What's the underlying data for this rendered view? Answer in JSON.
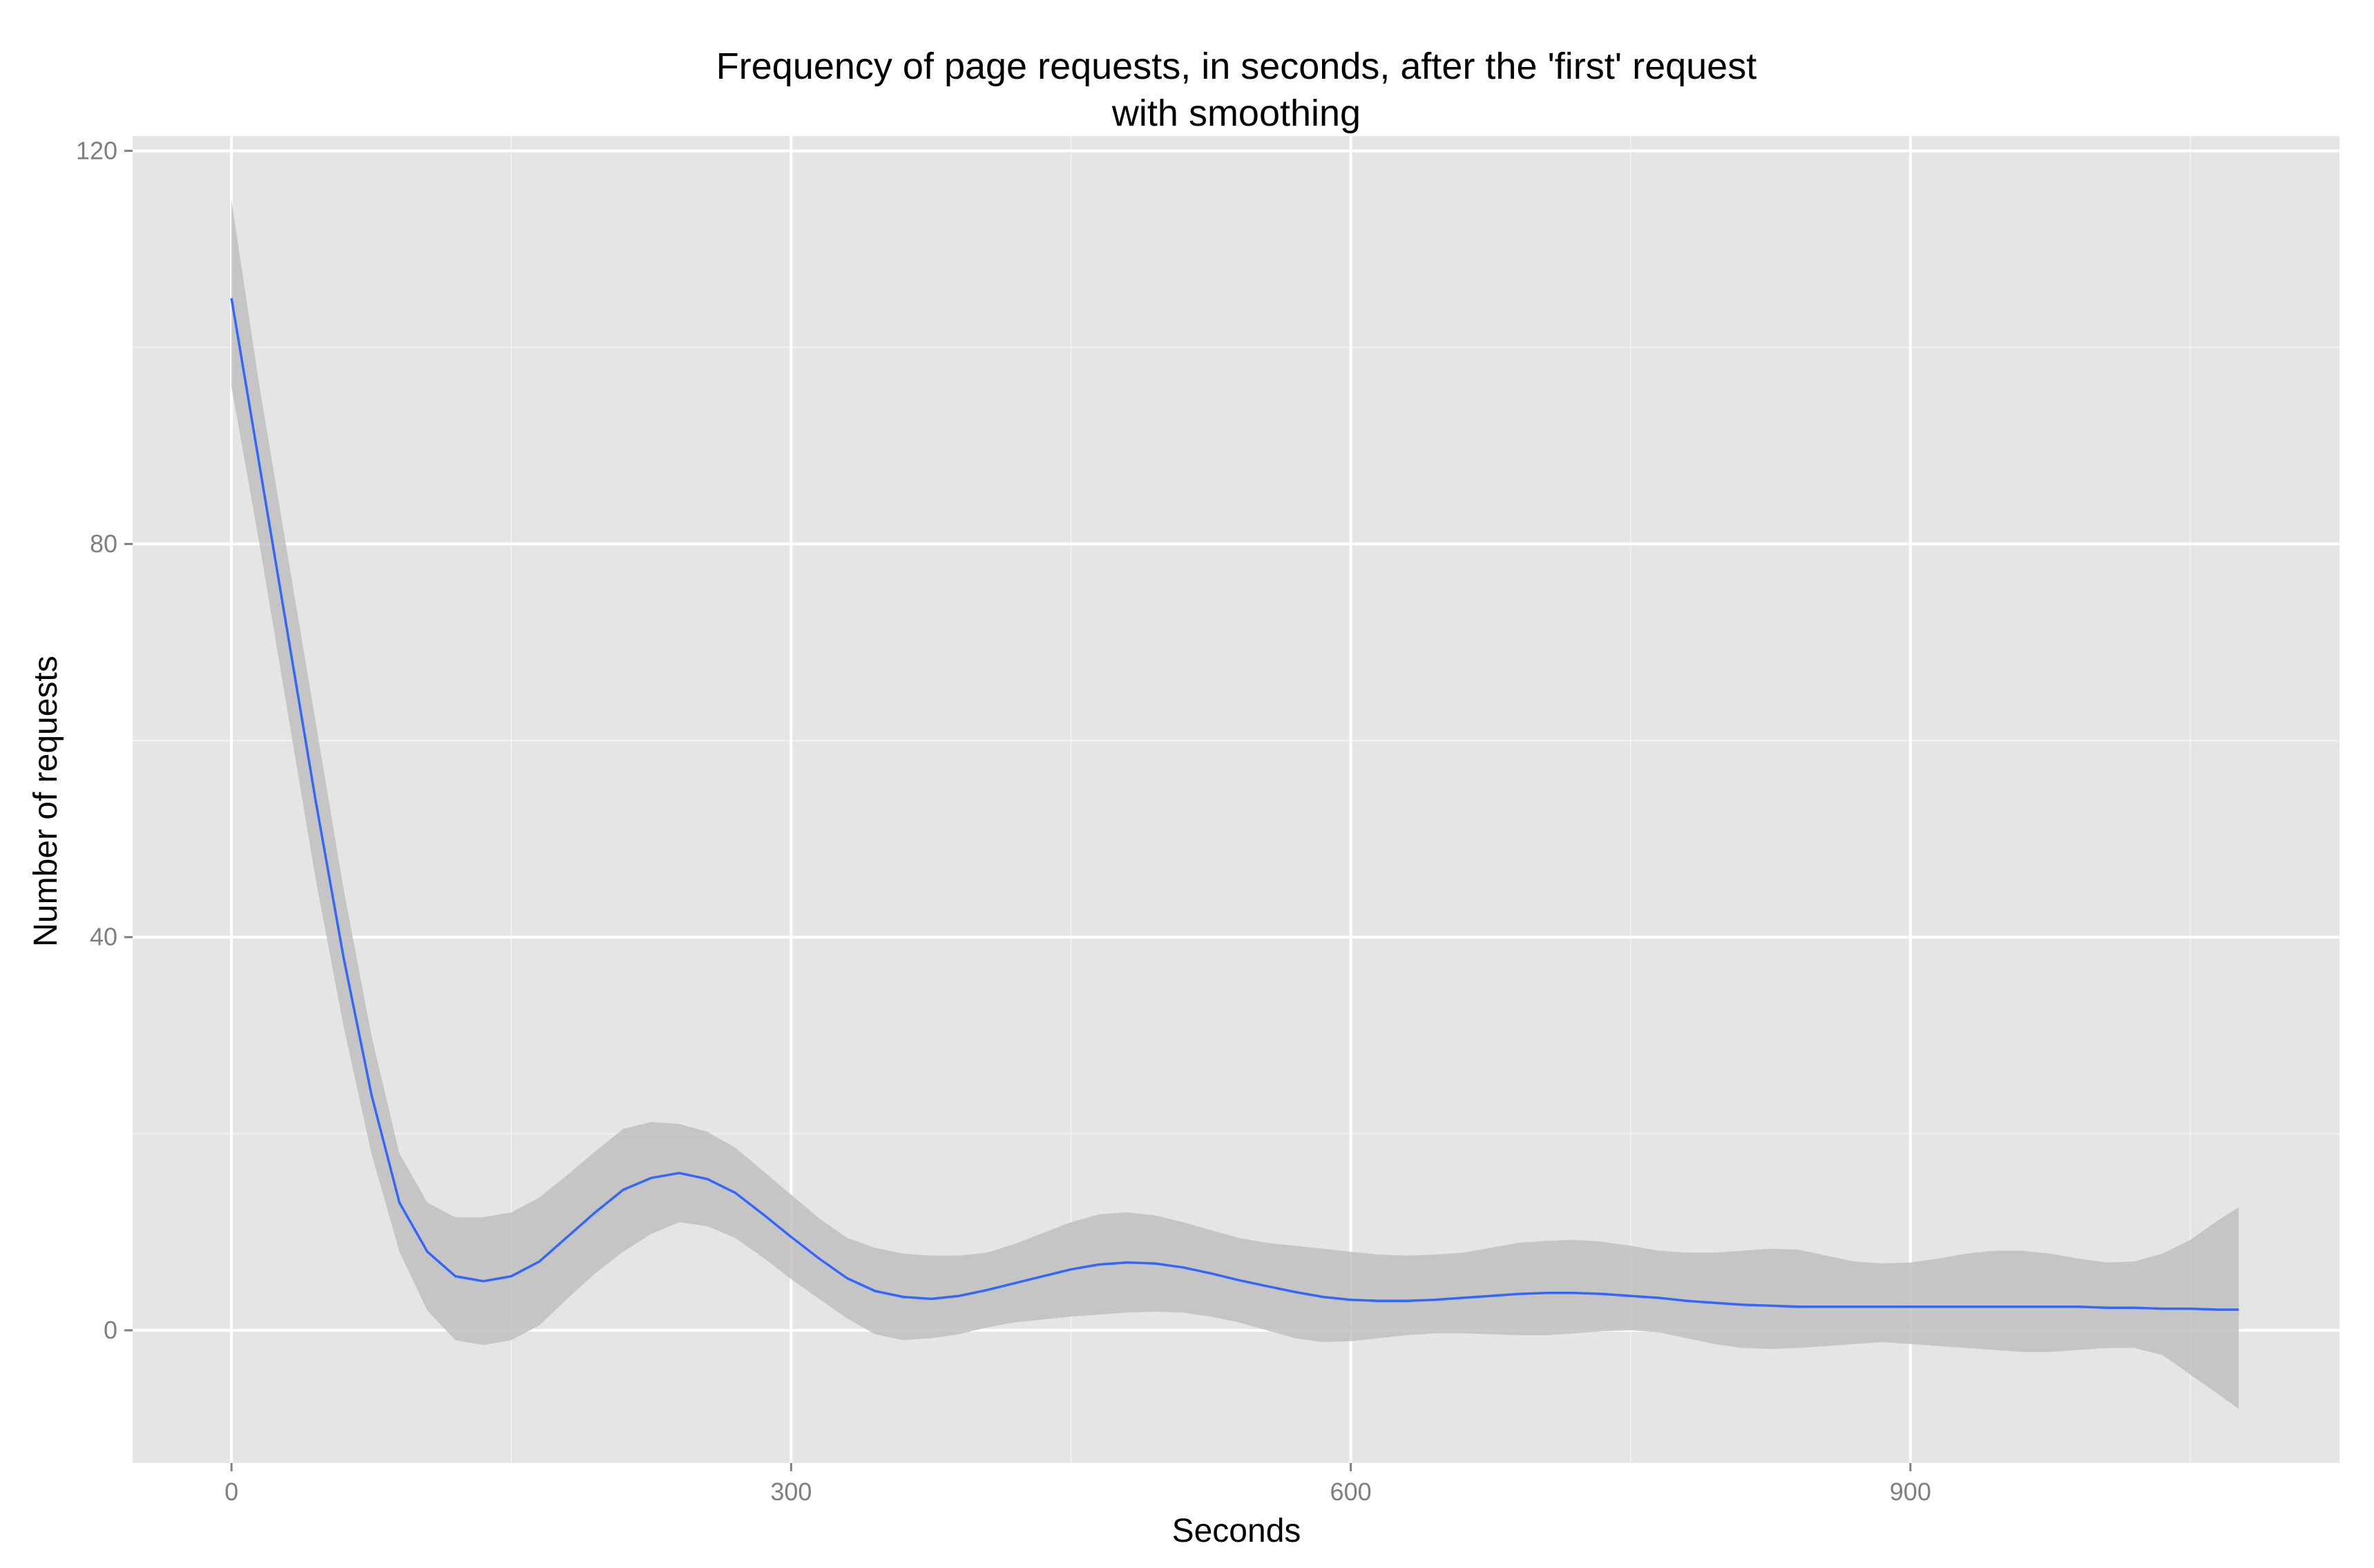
{
  "chart_data": {
    "type": "line",
    "title": "Frequency of page requests, in seconds, after the 'first' request",
    "subtitle": "with smoothing",
    "xlabel": "Seconds",
    "ylabel": "Number of requests",
    "xlim": [
      -53,
      1130
    ],
    "ylim": [
      -13.5,
      121.5
    ],
    "x_ticks": [
      0,
      300,
      600,
      900
    ],
    "y_ticks": [
      0,
      40,
      80,
      120
    ],
    "x_minor_ticks": [
      150,
      450,
      750,
      1050
    ],
    "y_minor_ticks": [
      20,
      60,
      100
    ],
    "grid": true,
    "panel_color": "#e5e5e5",
    "grid_color": "#ffffff",
    "line_color": "#3366ff",
    "band_color": "#bdbdbd",
    "series": [
      {
        "x": [
          0,
          15,
          30,
          45,
          60,
          75,
          90,
          105,
          120,
          135,
          150,
          165,
          180,
          195,
          210,
          225,
          240,
          255,
          270,
          285,
          300,
          315,
          330,
          345,
          360,
          375,
          390,
          405,
          420,
          435,
          450,
          465,
          480,
          495,
          510,
          525,
          540,
          555,
          570,
          585,
          600,
          615,
          630,
          645,
          660,
          675,
          690,
          705,
          720,
          735,
          750,
          765,
          780,
          795,
          810,
          825,
          840,
          855,
          870,
          885,
          900,
          915,
          930,
          945,
          960,
          975,
          990,
          1005,
          1020,
          1035,
          1050,
          1065,
          1076
        ],
        "y": [
          105,
          88,
          71,
          54,
          38,
          24,
          13,
          8,
          5.5,
          5,
          5.5,
          7,
          9.5,
          12,
          14.3,
          15.5,
          16,
          15.4,
          14,
          11.8,
          9.5,
          7.3,
          5.3,
          4,
          3.4,
          3.2,
          3.5,
          4.1,
          4.8,
          5.5,
          6.2,
          6.7,
          6.9,
          6.8,
          6.4,
          5.8,
          5.1,
          4.5,
          3.9,
          3.4,
          3.1,
          3,
          3,
          3.1,
          3.3,
          3.5,
          3.7,
          3.8,
          3.8,
          3.7,
          3.5,
          3.3,
          3,
          2.8,
          2.6,
          2.5,
          2.4,
          2.4,
          2.4,
          2.4,
          2.4,
          2.4,
          2.4,
          2.4,
          2.4,
          2.4,
          2.4,
          2.3,
          2.3,
          2.2,
          2.2,
          2.1,
          2.1
        ],
        "lower": [
          96,
          80,
          63,
          46,
          31,
          18,
          8,
          2,
          -1,
          -1.5,
          -1,
          0.5,
          3.2,
          5.8,
          8,
          9.8,
          11,
          10.6,
          9.4,
          7.4,
          5.2,
          3.2,
          1.2,
          -0.4,
          -1,
          -0.8,
          -0.4,
          0.3,
          0.8,
          1.1,
          1.4,
          1.6,
          1.8,
          1.9,
          1.8,
          1.4,
          0.8,
          0,
          -0.8,
          -1.2,
          -1.1,
          -0.8,
          -0.5,
          -0.3,
          -0.3,
          -0.4,
          -0.5,
          -0.5,
          -0.3,
          -0.1,
          0,
          -0.2,
          -0.8,
          -1.4,
          -1.8,
          -1.9,
          -1.8,
          -1.6,
          -1.4,
          -1.2,
          -1.4,
          -1.6,
          -1.8,
          -2,
          -2.2,
          -2.2,
          -2,
          -1.8,
          -1.8,
          -2.5,
          -4.5,
          -6.5,
          -8
        ]
      }
    ],
    "upper_band": [
      115,
      96,
      79,
      62,
      45,
      30,
      18,
      13,
      11.5,
      11.5,
      12,
      13.5,
      15.8,
      18.2,
      20.5,
      21.2,
      21,
      20.2,
      18.6,
      16.2,
      13.8,
      11.4,
      9.4,
      8.4,
      7.8,
      7.6,
      7.6,
      7.9,
      8.8,
      9.9,
      11,
      11.8,
      12,
      11.7,
      11,
      10.2,
      9.4,
      8.9,
      8.6,
      8.3,
      8,
      7.7,
      7.6,
      7.7,
      7.9,
      8.4,
      8.9,
      9.1,
      9.2,
      9,
      8.6,
      8.1,
      7.9,
      7.9,
      8.1,
      8.3,
      8.2,
      7.6,
      7,
      6.8,
      6.9,
      7.3,
      7.8,
      8.1,
      8.1,
      7.8,
      7.3,
      6.9,
      7,
      7.8,
      9.2,
      11.2,
      12.5
    ]
  }
}
